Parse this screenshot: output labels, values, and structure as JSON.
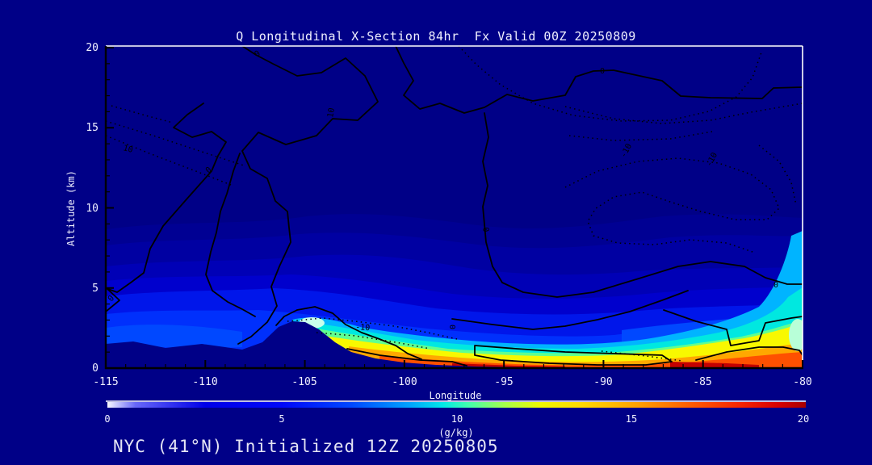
{
  "title": "Q Longitudinal X-Section 84hr  Fx Valid 00Z 20250809",
  "footer": "NYC (41°N) Initialized 12Z 20250805",
  "axes": {
    "y_label": "Altitude (km)",
    "x_label": "Longitude",
    "y_ticks": [
      "20",
      "15",
      "10",
      "5",
      "0"
    ],
    "x_ticks": [
      "-115",
      "-110",
      "-105",
      "-100",
      "-95",
      "-90",
      "-85",
      "-80"
    ]
  },
  "colorbar": {
    "ticks": [
      "0",
      "5",
      "10",
      "15",
      "20"
    ],
    "units": "(g/kg)"
  },
  "contour_line_labels": [
    {
      "text": "0"
    },
    {
      "text": "10"
    },
    {
      "text": "10"
    },
    {
      "text": "0"
    },
    {
      "text": "-10"
    },
    {
      "text": "-10"
    },
    {
      "text": "-10"
    },
    {
      "text": "0"
    },
    {
      "text": "0"
    },
    {
      "text": "0"
    },
    {
      "text": "0"
    },
    {
      "text": "0"
    }
  ],
  "colors": {
    "background": "#000087",
    "axis_black": "#000000",
    "frame_white": "#ffffff",
    "text": "#f0f0ff",
    "fill_scale_low": "#000087",
    "fill_scale_high": "#c40000"
  },
  "chart_data": {
    "type": "heatmap",
    "title": "Q Longitudinal X-Section 84hr  Fx Valid 00Z 20250809",
    "subtitle": "NYC (41°N) Initialized 12Z 20250805",
    "xlabel": "Longitude",
    "ylabel": "Altitude (km)",
    "xlim": [
      -115,
      -80
    ],
    "ylim": [
      0,
      20
    ],
    "colorbar": {
      "label": "(g/kg)",
      "range": [
        0,
        20
      ],
      "ticks": [
        0,
        5,
        10,
        15,
        20
      ]
    },
    "field": "specific humidity (filled contours, g/kg)",
    "categories": [
      -115,
      -110,
      -105,
      -100,
      -95,
      -90,
      -85,
      -80
    ],
    "series": [
      {
        "name": "surface_q_g_per_kg",
        "values": [
          3,
          3,
          6,
          16,
          18,
          19,
          19,
          17
        ]
      },
      {
        "name": "terrain_height_km",
        "values": [
          1.5,
          1.2,
          2.8,
          0.4,
          0.1,
          0,
          0,
          0
        ]
      },
      {
        "name": "q10_contour_top_km",
        "values": [
          0,
          0,
          0.6,
          1.5,
          1.6,
          1.7,
          2.0,
          2.5
        ]
      },
      {
        "name": "q2_contour_top_km",
        "values": [
          8.5,
          8.5,
          8,
          7.5,
          7,
          7.5,
          8,
          9
        ]
      }
    ],
    "line_contours": {
      "solid_labels": [
        0,
        10
      ],
      "dotted_labels": [
        10,
        -10
      ]
    },
    "legend_position": "none",
    "grid": false
  }
}
